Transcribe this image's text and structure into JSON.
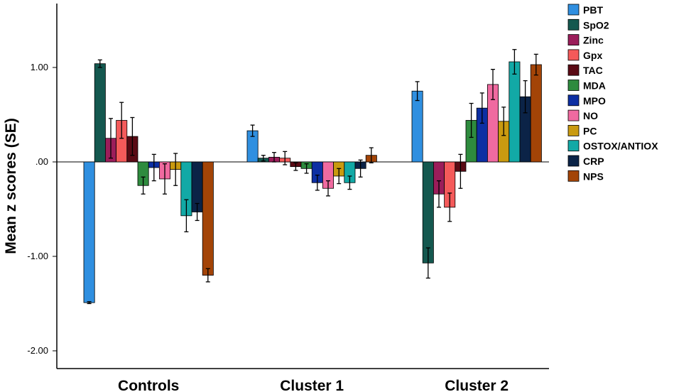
{
  "chart_data": {
    "type": "bar",
    "ylabel": "Mean z scores (SE)",
    "xlabel": "",
    "ylim": [
      -2.22,
      1.72
    ],
    "yticks": [
      1.0,
      0.0,
      -1.0,
      -2.0
    ],
    "ytick_labels": [
      "1.00",
      ".00",
      "-1.00",
      "-2.00"
    ],
    "grid": false,
    "legend_position": "right",
    "categories": [
      "Controls",
      "Cluster 1",
      "Cluster 2"
    ],
    "series": [
      {
        "name": "PBT",
        "color": "#2f8fe0",
        "values": [
          -1.49,
          0.33,
          0.75
        ],
        "errors": [
          0.01,
          0.06,
          0.1
        ]
      },
      {
        "name": "SpO2",
        "color": "#14584f",
        "values": [
          1.04,
          0.04,
          -1.07
        ],
        "errors": [
          0.04,
          0.03,
          0.16
        ]
      },
      {
        "name": "Zinc",
        "color": "#9b1d5a",
        "values": [
          0.25,
          0.05,
          -0.34
        ],
        "errors": [
          0.21,
          0.05,
          0.14
        ]
      },
      {
        "name": "Gpx",
        "color": "#f45a5a",
        "values": [
          0.44,
          0.04,
          -0.48
        ],
        "errors": [
          0.19,
          0.07,
          0.15
        ]
      },
      {
        "name": "TAC",
        "color": "#5a0a14",
        "values": [
          0.27,
          -0.05,
          -0.1
        ],
        "errors": [
          0.2,
          0.04,
          0.18
        ]
      },
      {
        "name": "MDA",
        "color": "#2e8b3e",
        "values": [
          -0.25,
          -0.07,
          0.44
        ],
        "errors": [
          0.09,
          0.05,
          0.18
        ]
      },
      {
        "name": "MPO",
        "color": "#0d2fa3",
        "values": [
          -0.06,
          -0.22,
          0.57
        ],
        "errors": [
          0.14,
          0.08,
          0.16
        ]
      },
      {
        "name": "NO",
        "color": "#f06aa0",
        "values": [
          -0.18,
          -0.28,
          0.82
        ],
        "errors": [
          0.16,
          0.08,
          0.16
        ]
      },
      {
        "name": "PC",
        "color": "#c99a10",
        "values": [
          -0.08,
          -0.15,
          0.43
        ],
        "errors": [
          0.17,
          0.08,
          0.15
        ]
      },
      {
        "name": "OSTOX/ANTIOX",
        "color": "#12a9a6",
        "values": [
          -0.57,
          -0.22,
          1.06
        ],
        "errors": [
          0.17,
          0.07,
          0.13
        ]
      },
      {
        "name": "CRP",
        "color": "#0b2347",
        "values": [
          -0.53,
          -0.07,
          0.69
        ],
        "errors": [
          0.09,
          0.09,
          0.17
        ]
      },
      {
        "name": "NPS",
        "color": "#a34407",
        "values": [
          -1.2,
          0.07,
          1.03
        ],
        "errors": [
          0.07,
          0.08,
          0.11
        ]
      }
    ]
  }
}
